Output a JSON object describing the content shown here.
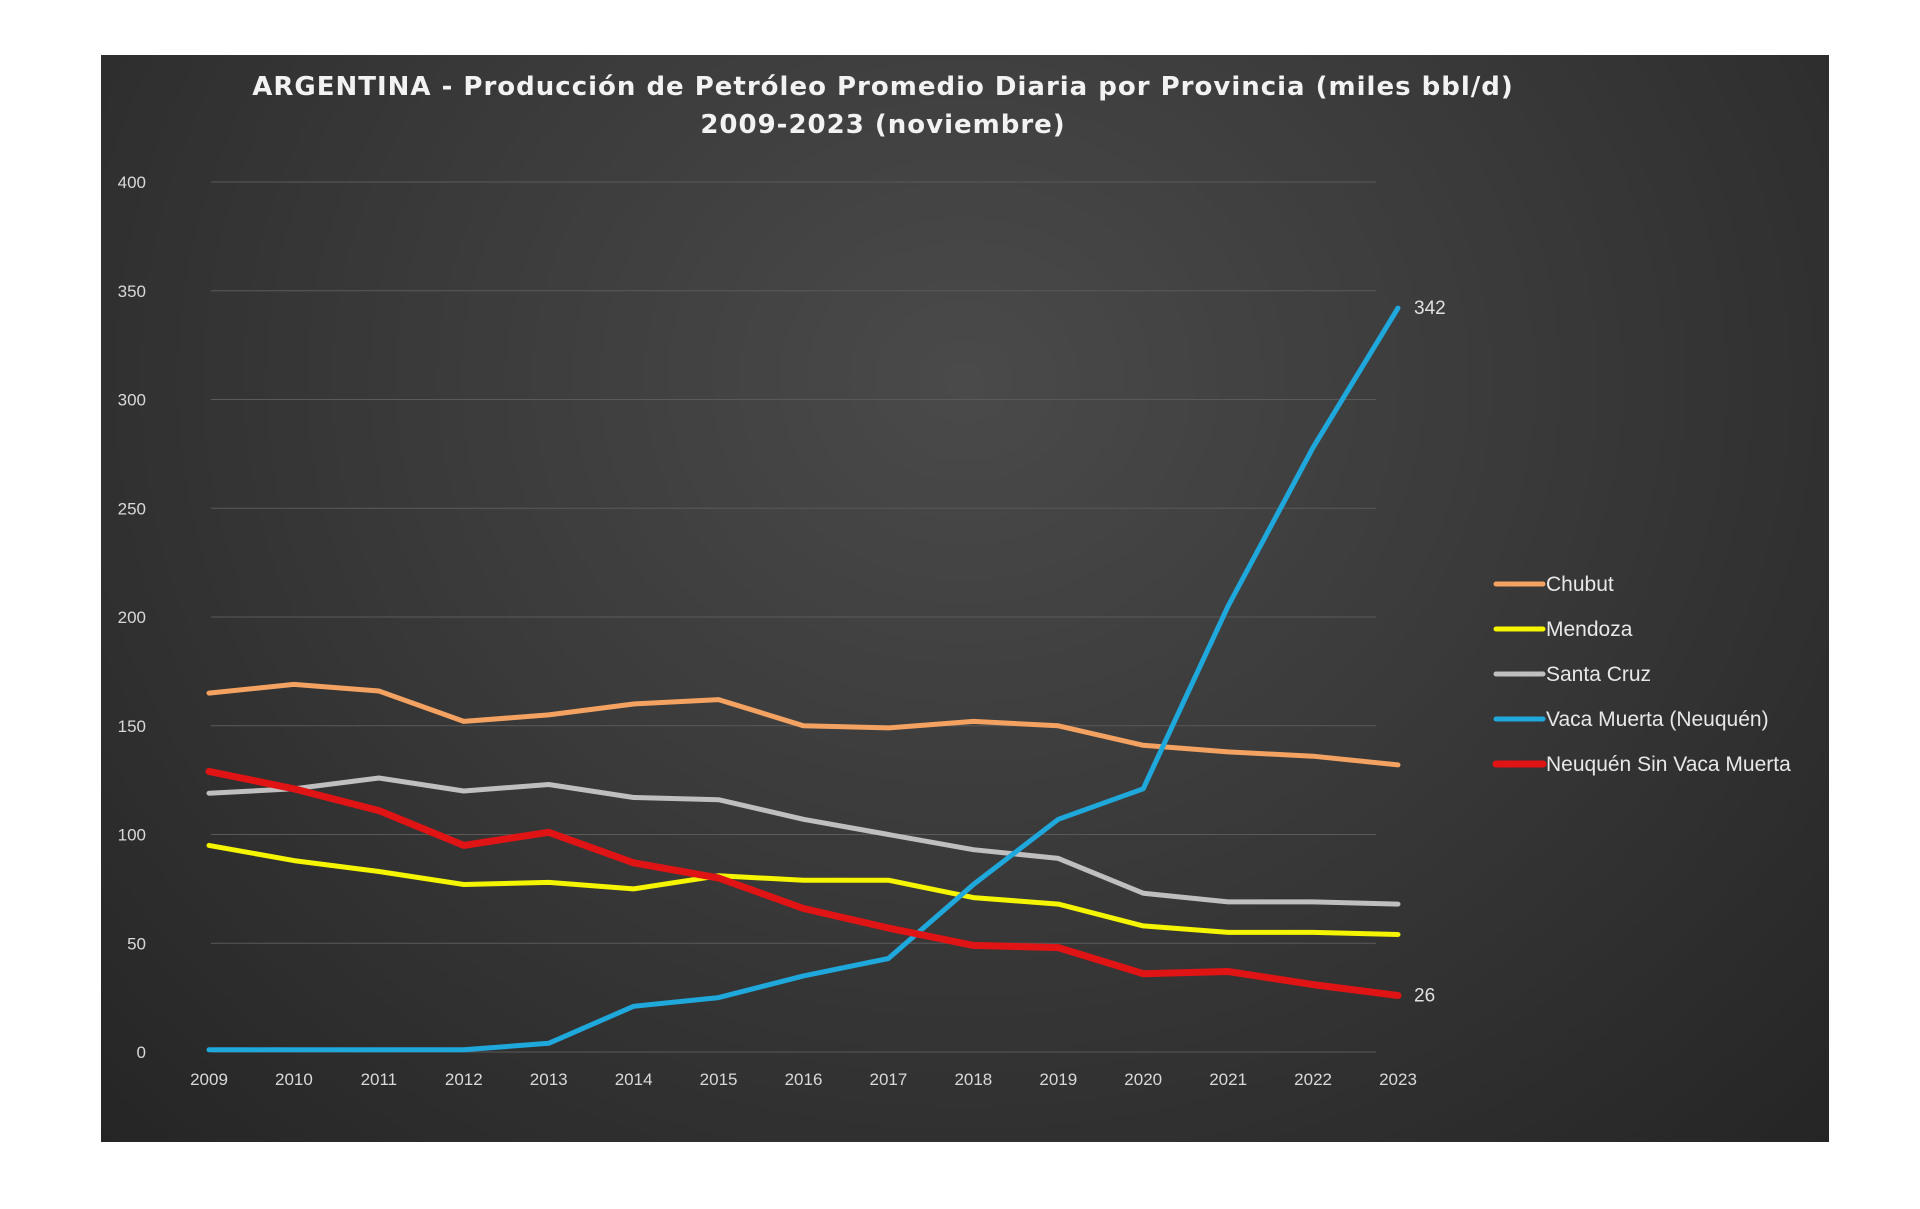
{
  "chart_data": {
    "type": "line",
    "title": "ARGENTINA - Producción de Petróleo Promedio Diaria por Provincia (miles bbl/d)",
    "subtitle": "2009-2023 (noviembre)",
    "xlabel": "",
    "ylabel": "",
    "x": [
      "2009",
      "2010",
      "2011",
      "2012",
      "2013",
      "2014",
      "2015",
      "2016",
      "2017",
      "2018",
      "2019",
      "2020",
      "2021",
      "2022",
      "2023"
    ],
    "ylim": [
      0,
      400
    ],
    "yticks": [
      "0",
      "50",
      "100",
      "150",
      "200",
      "250",
      "300",
      "350",
      "400"
    ],
    "grid": true,
    "legend_position": "right",
    "series": [
      {
        "name": "Chubut",
        "color": "#f4a261",
        "values": [
          165,
          169,
          166,
          152,
          155,
          160,
          162,
          150,
          149,
          152,
          150,
          141,
          138,
          136,
          132
        ]
      },
      {
        "name": "Mendoza",
        "color": "#f5f500",
        "values": [
          95,
          88,
          83,
          77,
          78,
          75,
          81,
          79,
          79,
          71,
          68,
          58,
          55,
          55,
          54
        ]
      },
      {
        "name": "Santa Cruz",
        "color": "#bfbfbf",
        "values": [
          119,
          121,
          126,
          120,
          123,
          117,
          116,
          107,
          100,
          93,
          89,
          73,
          69,
          69,
          68
        ]
      },
      {
        "name": "Vaca Muerta (Neuquén)",
        "color": "#1fa8dc",
        "values": [
          1,
          1,
          1,
          1,
          4,
          21,
          25,
          35,
          43,
          77,
          107,
          121,
          205,
          278,
          342
        ]
      },
      {
        "name": "Neuquén Sin Vaca Muerta",
        "color": "#e01414",
        "values": [
          129,
          121,
          111,
          95,
          101,
          87,
          80,
          66,
          57,
          49,
          48,
          36,
          37,
          31,
          26
        ]
      }
    ],
    "annotations": [
      {
        "series": "Vaca Muerta (Neuquén)",
        "x": "2023",
        "text": "342"
      },
      {
        "series": "Neuquén Sin Vaca Muerta",
        "x": "2023",
        "text": "26"
      }
    ]
  }
}
